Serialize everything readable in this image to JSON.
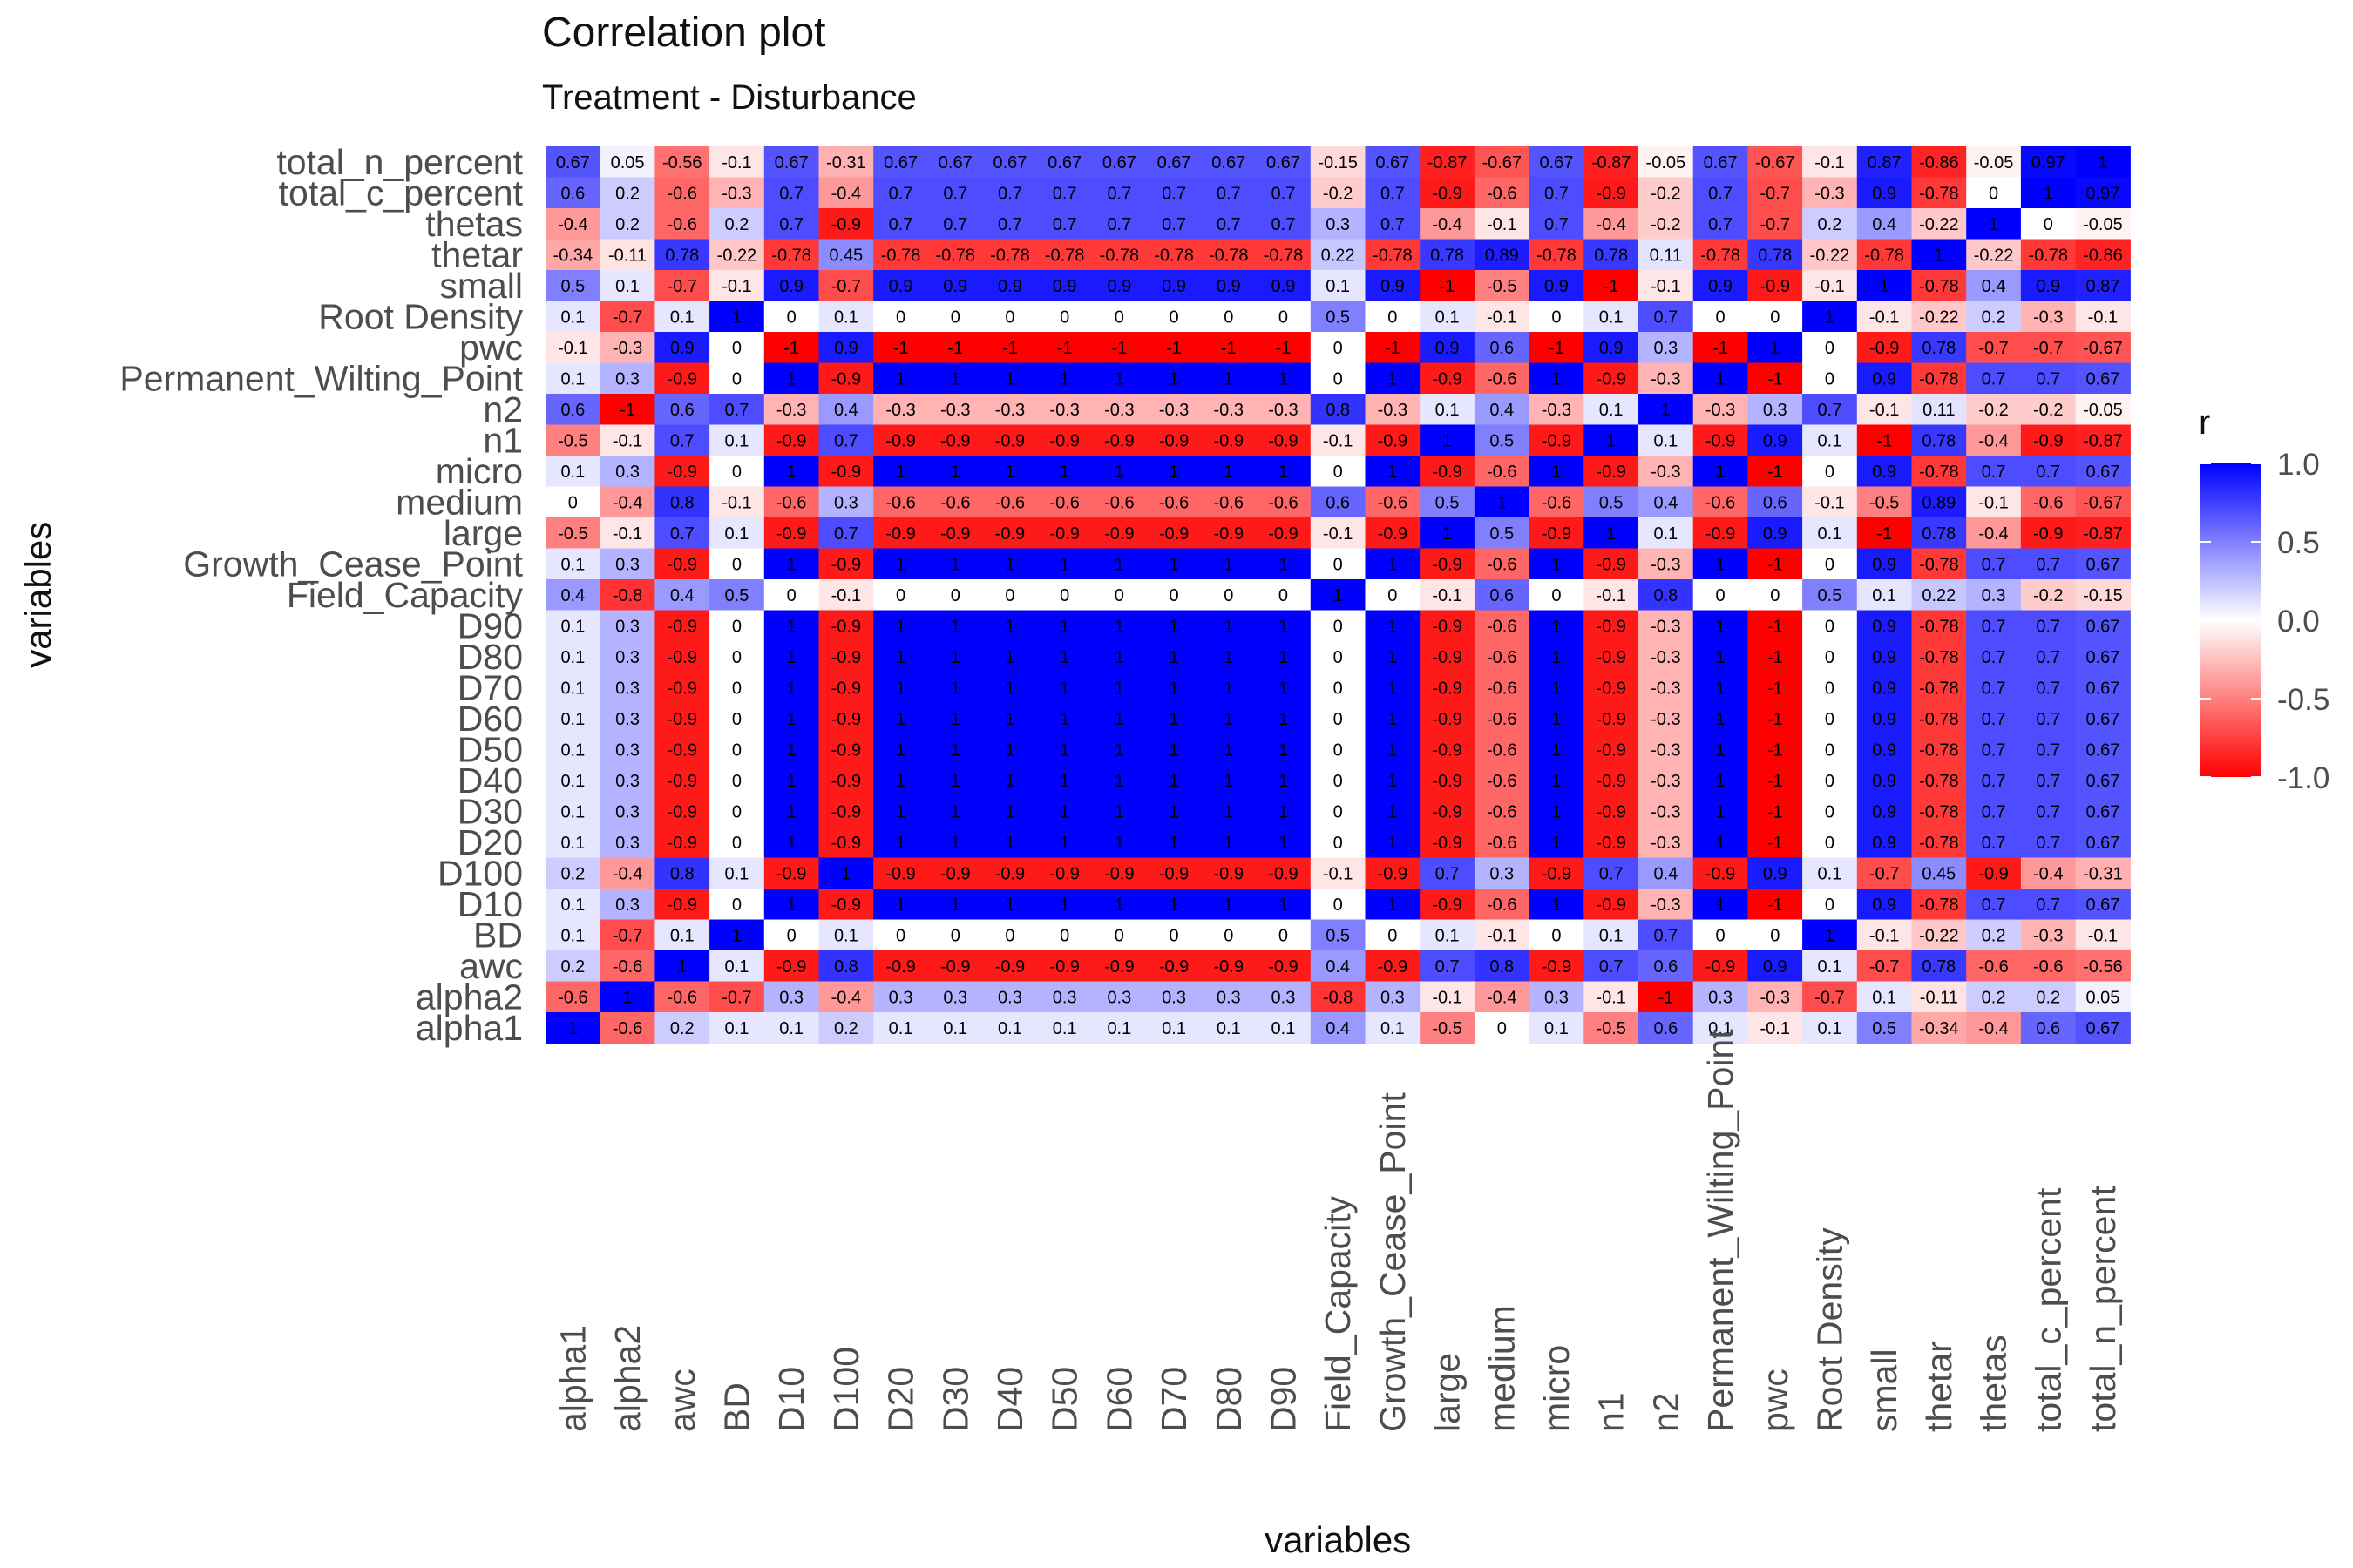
{
  "chart_data": {
    "type": "heatmap",
    "title": "Correlation plot",
    "subtitle": "Treatment - Disturbance",
    "xlabel": "variables",
    "ylabel": "variables",
    "legend": {
      "title": "r",
      "ticks": [
        1.0,
        0.5,
        0.0,
        -0.5,
        -1.0
      ],
      "tick_labels": [
        "1.0",
        "0.5",
        "0.0",
        "-0.5",
        "-1.0"
      ],
      "placement": "right",
      "low_color": "#ff0000",
      "mid_color": "#ffffff",
      "high_color": "#0000ff"
    },
    "x_categories": [
      "alpha1",
      "alpha2",
      "awc",
      "BD",
      "D10",
      "D100",
      "D20",
      "D30",
      "D40",
      "D50",
      "D60",
      "D70",
      "D80",
      "D90",
      "Field_Capacity",
      "Growth_Cease_Point",
      "large",
      "medium",
      "micro",
      "n1",
      "n2",
      "Permanent_Wilting_Point",
      "pwc",
      "Root Density",
      "small",
      "thetar",
      "thetas",
      "total_c_percent",
      "total_n_percent"
    ],
    "y_categories_top_to_bottom": [
      "total_n_percent",
      "total_c_percent",
      "thetas",
      "thetar",
      "small",
      "Root Density",
      "pwc",
      "Permanent_Wilting_Point",
      "n2",
      "n1",
      "micro",
      "medium",
      "large",
      "Growth_Cease_Point",
      "Field_Capacity",
      "D90",
      "D80",
      "D70",
      "D60",
      "D50",
      "D40",
      "D30",
      "D20",
      "D100",
      "D10",
      "BD",
      "awc",
      "alpha2",
      "alpha1"
    ],
    "values": [
      [
        "0.67",
        "0.05",
        "-0.56",
        "-0.1",
        "0.67",
        "-0.31",
        "0.67",
        "0.67",
        "0.67",
        "0.67",
        "0.67",
        "0.67",
        "0.67",
        "0.67",
        "-0.15",
        "0.67",
        "-0.87",
        "-0.67",
        "0.67",
        "-0.87",
        "-0.05",
        "0.67",
        "-0.67",
        "-0.1",
        "0.87",
        "-0.86",
        "-0.05",
        "0.97",
        "1"
      ],
      [
        "0.6",
        "0.2",
        "-0.6",
        "-0.3",
        "0.7",
        "-0.4",
        "0.7",
        "0.7",
        "0.7",
        "0.7",
        "0.7",
        "0.7",
        "0.7",
        "0.7",
        "-0.2",
        "0.7",
        "-0.9",
        "-0.6",
        "0.7",
        "-0.9",
        "-0.2",
        "0.7",
        "-0.7",
        "-0.3",
        "0.9",
        "-0.78",
        "0",
        "1",
        "0.97"
      ],
      [
        "-0.4",
        "0.2",
        "-0.6",
        "0.2",
        "0.7",
        "-0.9",
        "0.7",
        "0.7",
        "0.7",
        "0.7",
        "0.7",
        "0.7",
        "0.7",
        "0.7",
        "0.3",
        "0.7",
        "-0.4",
        "-0.1",
        "0.7",
        "-0.4",
        "-0.2",
        "0.7",
        "-0.7",
        "0.2",
        "0.4",
        "-0.22",
        "1",
        "0",
        "-0.05"
      ],
      [
        "-0.34",
        "-0.11",
        "0.78",
        "-0.22",
        "-0.78",
        "0.45",
        "-0.78",
        "-0.78",
        "-0.78",
        "-0.78",
        "-0.78",
        "-0.78",
        "-0.78",
        "-0.78",
        "0.22",
        "-0.78",
        "0.78",
        "0.89",
        "-0.78",
        "0.78",
        "0.11",
        "-0.78",
        "0.78",
        "-0.22",
        "-0.78",
        "1",
        "-0.22",
        "-0.78",
        "-0.86"
      ],
      [
        "0.5",
        "0.1",
        "-0.7",
        "-0.1",
        "0.9",
        "-0.7",
        "0.9",
        "0.9",
        "0.9",
        "0.9",
        "0.9",
        "0.9",
        "0.9",
        "0.9",
        "0.1",
        "0.9",
        "-1",
        "-0.5",
        "0.9",
        "-1",
        "-0.1",
        "0.9",
        "-0.9",
        "-0.1",
        "1",
        "-0.78",
        "0.4",
        "0.9",
        "0.87"
      ],
      [
        "0.1",
        "-0.7",
        "0.1",
        "1",
        "0",
        "0.1",
        "0",
        "0",
        "0",
        "0",
        "0",
        "0",
        "0",
        "0",
        "0.5",
        "0",
        "0.1",
        "-0.1",
        "0",
        "0.1",
        "0.7",
        "0",
        "0",
        "1",
        "-0.1",
        "-0.22",
        "0.2",
        "-0.3",
        "-0.1"
      ],
      [
        "-0.1",
        "-0.3",
        "0.9",
        "0",
        "-1",
        "0.9",
        "-1",
        "-1",
        "-1",
        "-1",
        "-1",
        "-1",
        "-1",
        "-1",
        "0",
        "-1",
        "0.9",
        "0.6",
        "-1",
        "0.9",
        "0.3",
        "-1",
        "1",
        "0",
        "-0.9",
        "0.78",
        "-0.7",
        "-0.7",
        "-0.67"
      ],
      [
        "0.1",
        "0.3",
        "-0.9",
        "0",
        "1",
        "-0.9",
        "1",
        "1",
        "1",
        "1",
        "1",
        "1",
        "1",
        "1",
        "0",
        "1",
        "-0.9",
        "-0.6",
        "1",
        "-0.9",
        "-0.3",
        "1",
        "-1",
        "0",
        "0.9",
        "-0.78",
        "0.7",
        "0.7",
        "0.67"
      ],
      [
        "0.6",
        "-1",
        "0.6",
        "0.7",
        "-0.3",
        "0.4",
        "-0.3",
        "-0.3",
        "-0.3",
        "-0.3",
        "-0.3",
        "-0.3",
        "-0.3",
        "-0.3",
        "0.8",
        "-0.3",
        "0.1",
        "0.4",
        "-0.3",
        "0.1",
        "1",
        "-0.3",
        "0.3",
        "0.7",
        "-0.1",
        "0.11",
        "-0.2",
        "-0.2",
        "-0.05"
      ],
      [
        "-0.5",
        "-0.1",
        "0.7",
        "0.1",
        "-0.9",
        "0.7",
        "-0.9",
        "-0.9",
        "-0.9",
        "-0.9",
        "-0.9",
        "-0.9",
        "-0.9",
        "-0.9",
        "-0.1",
        "-0.9",
        "1",
        "0.5",
        "-0.9",
        "1",
        "0.1",
        "-0.9",
        "0.9",
        "0.1",
        "-1",
        "0.78",
        "-0.4",
        "-0.9",
        "-0.87"
      ],
      [
        "0.1",
        "0.3",
        "-0.9",
        "0",
        "1",
        "-0.9",
        "1",
        "1",
        "1",
        "1",
        "1",
        "1",
        "1",
        "1",
        "0",
        "1",
        "-0.9",
        "-0.6",
        "1",
        "-0.9",
        "-0.3",
        "1",
        "-1",
        "0",
        "0.9",
        "-0.78",
        "0.7",
        "0.7",
        "0.67"
      ],
      [
        "0",
        "-0.4",
        "0.8",
        "-0.1",
        "-0.6",
        "0.3",
        "-0.6",
        "-0.6",
        "-0.6",
        "-0.6",
        "-0.6",
        "-0.6",
        "-0.6",
        "-0.6",
        "0.6",
        "-0.6",
        "0.5",
        "1",
        "-0.6",
        "0.5",
        "0.4",
        "-0.6",
        "0.6",
        "-0.1",
        "-0.5",
        "0.89",
        "-0.1",
        "-0.6",
        "-0.67"
      ],
      [
        "-0.5",
        "-0.1",
        "0.7",
        "0.1",
        "-0.9",
        "0.7",
        "-0.9",
        "-0.9",
        "-0.9",
        "-0.9",
        "-0.9",
        "-0.9",
        "-0.9",
        "-0.9",
        "-0.1",
        "-0.9",
        "1",
        "0.5",
        "-0.9",
        "1",
        "0.1",
        "-0.9",
        "0.9",
        "0.1",
        "-1",
        "0.78",
        "-0.4",
        "-0.9",
        "-0.87"
      ],
      [
        "0.1",
        "0.3",
        "-0.9",
        "0",
        "1",
        "-0.9",
        "1",
        "1",
        "1",
        "1",
        "1",
        "1",
        "1",
        "1",
        "0",
        "1",
        "-0.9",
        "-0.6",
        "1",
        "-0.9",
        "-0.3",
        "1",
        "-1",
        "0",
        "0.9",
        "-0.78",
        "0.7",
        "0.7",
        "0.67"
      ],
      [
        "0.4",
        "-0.8",
        "0.4",
        "0.5",
        "0",
        "-0.1",
        "0",
        "0",
        "0",
        "0",
        "0",
        "0",
        "0",
        "0",
        "1",
        "0",
        "-0.1",
        "0.6",
        "0",
        "-0.1",
        "0.8",
        "0",
        "0",
        "0.5",
        "0.1",
        "0.22",
        "0.3",
        "-0.2",
        "-0.15"
      ],
      [
        "0.1",
        "0.3",
        "-0.9",
        "0",
        "1",
        "-0.9",
        "1",
        "1",
        "1",
        "1",
        "1",
        "1",
        "1",
        "1",
        "0",
        "1",
        "-0.9",
        "-0.6",
        "1",
        "-0.9",
        "-0.3",
        "1",
        "-1",
        "0",
        "0.9",
        "-0.78",
        "0.7",
        "0.7",
        "0.67"
      ],
      [
        "0.1",
        "0.3",
        "-0.9",
        "0",
        "1",
        "-0.9",
        "1",
        "1",
        "1",
        "1",
        "1",
        "1",
        "1",
        "1",
        "0",
        "1",
        "-0.9",
        "-0.6",
        "1",
        "-0.9",
        "-0.3",
        "1",
        "-1",
        "0",
        "0.9",
        "-0.78",
        "0.7",
        "0.7",
        "0.67"
      ],
      [
        "0.1",
        "0.3",
        "-0.9",
        "0",
        "1",
        "-0.9",
        "1",
        "1",
        "1",
        "1",
        "1",
        "1",
        "1",
        "1",
        "0",
        "1",
        "-0.9",
        "-0.6",
        "1",
        "-0.9",
        "-0.3",
        "1",
        "-1",
        "0",
        "0.9",
        "-0.78",
        "0.7",
        "0.7",
        "0.67"
      ],
      [
        "0.1",
        "0.3",
        "-0.9",
        "0",
        "1",
        "-0.9",
        "1",
        "1",
        "1",
        "1",
        "1",
        "1",
        "1",
        "1",
        "0",
        "1",
        "-0.9",
        "-0.6",
        "1",
        "-0.9",
        "-0.3",
        "1",
        "-1",
        "0",
        "0.9",
        "-0.78",
        "0.7",
        "0.7",
        "0.67"
      ],
      [
        "0.1",
        "0.3",
        "-0.9",
        "0",
        "1",
        "-0.9",
        "1",
        "1",
        "1",
        "1",
        "1",
        "1",
        "1",
        "1",
        "0",
        "1",
        "-0.9",
        "-0.6",
        "1",
        "-0.9",
        "-0.3",
        "1",
        "-1",
        "0",
        "0.9",
        "-0.78",
        "0.7",
        "0.7",
        "0.67"
      ],
      [
        "0.1",
        "0.3",
        "-0.9",
        "0",
        "1",
        "-0.9",
        "1",
        "1",
        "1",
        "1",
        "1",
        "1",
        "1",
        "1",
        "0",
        "1",
        "-0.9",
        "-0.6",
        "1",
        "-0.9",
        "-0.3",
        "1",
        "-1",
        "0",
        "0.9",
        "-0.78",
        "0.7",
        "0.7",
        "0.67"
      ],
      [
        "0.1",
        "0.3",
        "-0.9",
        "0",
        "1",
        "-0.9",
        "1",
        "1",
        "1",
        "1",
        "1",
        "1",
        "1",
        "1",
        "0",
        "1",
        "-0.9",
        "-0.6",
        "1",
        "-0.9",
        "-0.3",
        "1",
        "-1",
        "0",
        "0.9",
        "-0.78",
        "0.7",
        "0.7",
        "0.67"
      ],
      [
        "0.1",
        "0.3",
        "-0.9",
        "0",
        "1",
        "-0.9",
        "1",
        "1",
        "1",
        "1",
        "1",
        "1",
        "1",
        "1",
        "0",
        "1",
        "-0.9",
        "-0.6",
        "1",
        "-0.9",
        "-0.3",
        "1",
        "-1",
        "0",
        "0.9",
        "-0.78",
        "0.7",
        "0.7",
        "0.67"
      ],
      [
        "0.2",
        "-0.4",
        "0.8",
        "0.1",
        "-0.9",
        "1",
        "-0.9",
        "-0.9",
        "-0.9",
        "-0.9",
        "-0.9",
        "-0.9",
        "-0.9",
        "-0.9",
        "-0.1",
        "-0.9",
        "0.7",
        "0.3",
        "-0.9",
        "0.7",
        "0.4",
        "-0.9",
        "0.9",
        "0.1",
        "-0.7",
        "0.45",
        "-0.9",
        "-0.4",
        "-0.31"
      ],
      [
        "0.1",
        "0.3",
        "-0.9",
        "0",
        "1",
        "-0.9",
        "1",
        "1",
        "1",
        "1",
        "1",
        "1",
        "1",
        "1",
        "0",
        "1",
        "-0.9",
        "-0.6",
        "1",
        "-0.9",
        "-0.3",
        "1",
        "-1",
        "0",
        "0.9",
        "-0.78",
        "0.7",
        "0.7",
        "0.67"
      ],
      [
        "0.1",
        "-0.7",
        "0.1",
        "1",
        "0",
        "0.1",
        "0",
        "0",
        "0",
        "0",
        "0",
        "0",
        "0",
        "0",
        "0.5",
        "0",
        "0.1",
        "-0.1",
        "0",
        "0.1",
        "0.7",
        "0",
        "0",
        "1",
        "-0.1",
        "-0.22",
        "0.2",
        "-0.3",
        "-0.1"
      ],
      [
        "0.2",
        "-0.6",
        "1",
        "0.1",
        "-0.9",
        "0.8",
        "-0.9",
        "-0.9",
        "-0.9",
        "-0.9",
        "-0.9",
        "-0.9",
        "-0.9",
        "-0.9",
        "0.4",
        "-0.9",
        "0.7",
        "0.8",
        "-0.9",
        "0.7",
        "0.6",
        "-0.9",
        "0.9",
        "0.1",
        "-0.7",
        "0.78",
        "-0.6",
        "-0.6",
        "-0.56"
      ],
      [
        "-0.6",
        "1",
        "-0.6",
        "-0.7",
        "0.3",
        "-0.4",
        "0.3",
        "0.3",
        "0.3",
        "0.3",
        "0.3",
        "0.3",
        "0.3",
        "0.3",
        "-0.8",
        "0.3",
        "-0.1",
        "-0.4",
        "0.3",
        "-0.1",
        "-1",
        "0.3",
        "-0.3",
        "-0.7",
        "0.1",
        "-0.11",
        "0.2",
        "0.2",
        "0.05"
      ],
      [
        "1",
        "-0.6",
        "0.2",
        "0.1",
        "0.1",
        "0.2",
        "0.1",
        "0.1",
        "0.1",
        "0.1",
        "0.1",
        "0.1",
        "0.1",
        "0.1",
        "0.4",
        "0.1",
        "-0.5",
        "0",
        "0.1",
        "-0.5",
        "0.6",
        "0.1",
        "-0.1",
        "0.1",
        "0.5",
        "-0.34",
        "-0.4",
        "0.6",
        "0.67"
      ]
    ]
  }
}
